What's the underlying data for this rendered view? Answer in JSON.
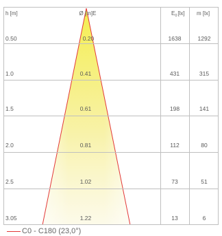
{
  "header": {
    "height": "h [m]",
    "diameter": "Ø [m]E",
    "illuminance_e0": "E",
    "illuminance_e0_sub": "0",
    "illuminance_e0_unit": "[lx]",
    "illuminance_em": "m [lx]"
  },
  "rows": [
    {
      "h": "0.50",
      "d": "0.20",
      "e0": "1638",
      "em": "1292"
    },
    {
      "h": "1.0",
      "d": "0.41",
      "e0": "431",
      "em": "315"
    },
    {
      "h": "1.5",
      "d": "0.61",
      "e0": "198",
      "em": "141"
    },
    {
      "h": "2.0",
      "d": "0.81",
      "e0": "112",
      "em": "80"
    },
    {
      "h": "2.5",
      "d": "1.02",
      "e0": "73",
      "em": "51"
    },
    {
      "h": "3.05",
      "d": "1.22",
      "e0": "13",
      "em": "6"
    }
  ],
  "legend": {
    "label": "C0 - C180 (23,0°)",
    "color": "#e23838"
  },
  "colors": {
    "grid": "#bfbfbf",
    "beam_core": "#f3ec5c",
    "beam_outline": "#e23838"
  }
}
